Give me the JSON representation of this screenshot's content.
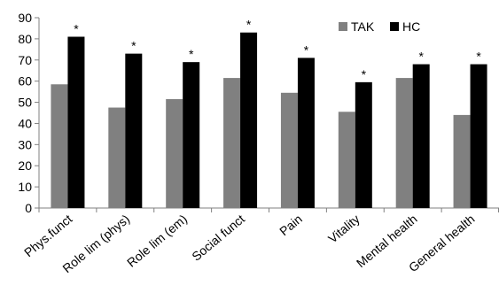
{
  "chart_data": {
    "type": "bar",
    "categories": [
      "Phys.funct",
      "Role lim (phys)",
      "Role lim (em)",
      "Social funct",
      "Pain",
      "Vitality",
      "Mental health",
      "General health"
    ],
    "series": [
      {
        "name": "TAK",
        "color": "#808080",
        "values": [
          58.5,
          47.5,
          51.5,
          61.5,
          54.5,
          45.5,
          61.5,
          44
        ]
      },
      {
        "name": "HC",
        "color": "#000000",
        "values": [
          81,
          73,
          69,
          83,
          71,
          59.5,
          68,
          68
        ]
      }
    ],
    "significance_markers": [
      "*",
      "*",
      "*",
      "*",
      "*",
      "*",
      "*",
      "*"
    ],
    "ylim": [
      0,
      90
    ],
    "yticks": [
      0,
      10,
      20,
      30,
      40,
      50,
      60,
      70,
      80,
      90
    ],
    "legend_position": "top-right",
    "grid": false
  }
}
